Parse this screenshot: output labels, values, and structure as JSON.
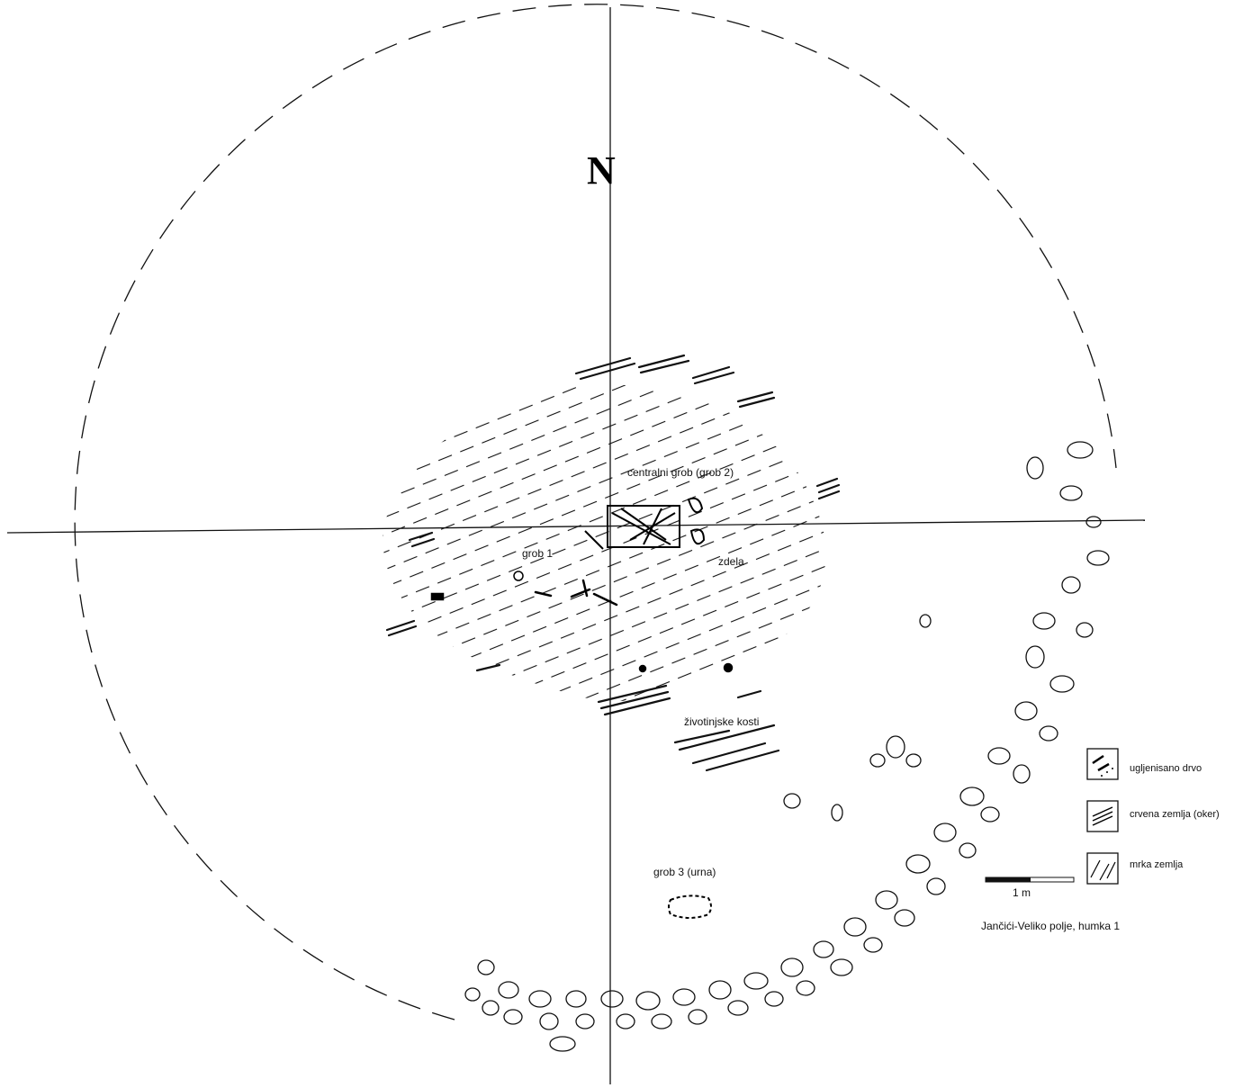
{
  "north_label": "N",
  "labels": {
    "central_grave": "centralni grob (grob 2)",
    "grave1": "grob 1",
    "bowl": "zdela",
    "animal_bones": "životinjske kosti",
    "grave3": "grob 3 (urna)"
  },
  "legend": [
    {
      "label": "ugljenisano drvo",
      "icon": "charcoal-pattern"
    },
    {
      "label": "crvena zemlja (oker)",
      "icon": "red-earth-pattern"
    },
    {
      "label": "mrka zemlja",
      "icon": "brown-earth-pattern"
    }
  ],
  "scale": {
    "label": "1 m"
  },
  "caption": "Jančići-Veliko polje, humka 1"
}
